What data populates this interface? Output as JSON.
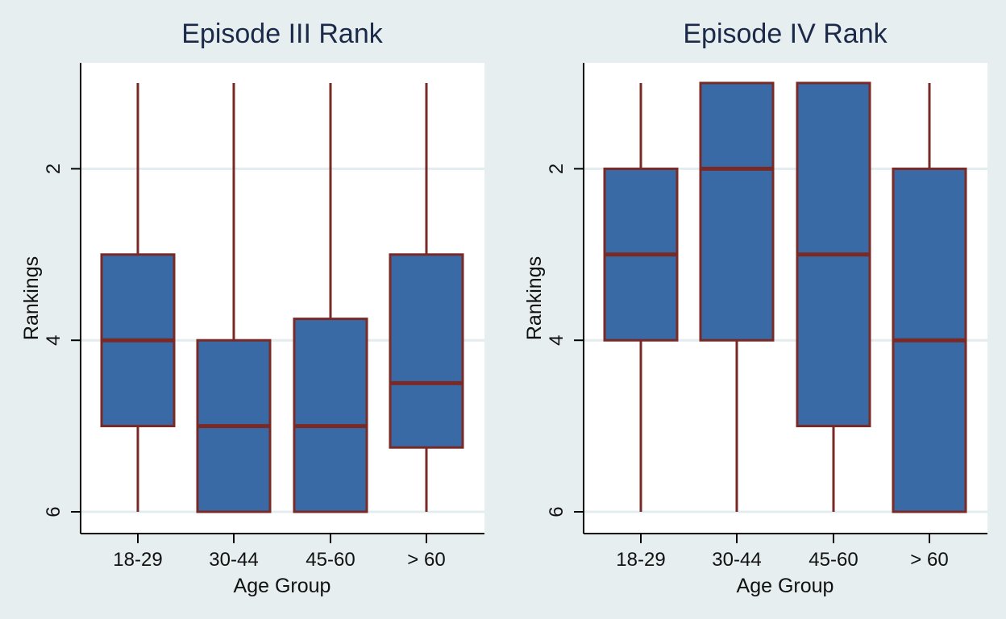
{
  "chart_data": [
    {
      "type": "box",
      "title": "Episode III Rank",
      "xlabel": "Age Group",
      "ylabel": "Rankings",
      "ylim": [
        1,
        6
      ],
      "y_reversed": true,
      "yticks": [
        2,
        4,
        6
      ],
      "grid": true,
      "legend": "none",
      "categories": [
        "18-29",
        "30-44",
        "45-60",
        "> 60"
      ],
      "boxes": [
        {
          "category": "18-29",
          "whisker_low": 1,
          "q1": 3,
          "median": 4,
          "q3": 5,
          "whisker_high": 6
        },
        {
          "category": "30-44",
          "whisker_low": 1,
          "q1": 4,
          "median": 5,
          "q3": 6,
          "whisker_high": 6
        },
        {
          "category": "45-60",
          "whisker_low": 1,
          "q1": 3.75,
          "median": 5,
          "q3": 6,
          "whisker_high": 6
        },
        {
          "category": "> 60",
          "whisker_low": 1,
          "q1": 3,
          "median": 4.5,
          "q3": 5.25,
          "whisker_high": 6
        }
      ]
    },
    {
      "type": "box",
      "title": "Episode IV Rank",
      "xlabel": "Age Group",
      "ylabel": "Rankings",
      "ylim": [
        1,
        6
      ],
      "y_reversed": true,
      "yticks": [
        2,
        4,
        6
      ],
      "grid": true,
      "legend": "none",
      "categories": [
        "18-29",
        "30-44",
        "45-60",
        "> 60"
      ],
      "boxes": [
        {
          "category": "18-29",
          "whisker_low": 1,
          "q1": 2,
          "median": 3,
          "q3": 4,
          "whisker_high": 6
        },
        {
          "category": "30-44",
          "whisker_low": 1,
          "q1": 1,
          "median": 2,
          "q3": 4,
          "whisker_high": 6
        },
        {
          "category": "45-60",
          "whisker_low": 1,
          "q1": 1,
          "median": 3,
          "q3": 5,
          "whisker_high": 6
        },
        {
          "category": "> 60",
          "whisker_low": 1,
          "q1": 2,
          "median": 4,
          "q3": 6,
          "whisker_high": 6
        }
      ]
    }
  ],
  "colors": {
    "background": "#e6eef0",
    "plot_background": "#ffffff",
    "box_fill": "#3a6aa5",
    "box_outline": "#7a2a26",
    "gridline": "#e3ecee",
    "title": "#1c2a4a"
  }
}
